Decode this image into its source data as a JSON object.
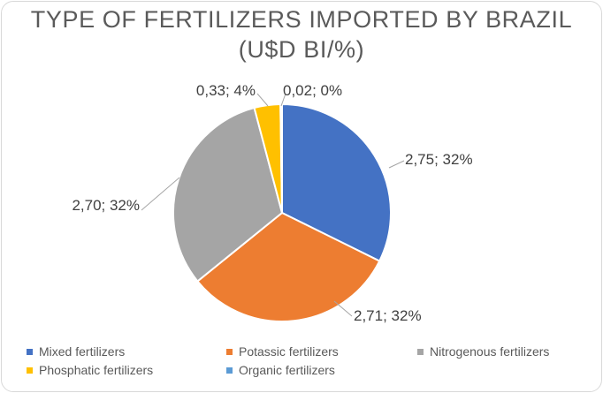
{
  "chart_data": {
    "type": "pie",
    "title_line1": "TYPE OF FERTILIZERS IMPORTED BY BRAZIL",
    "title_line2": "(U$D BI/%)",
    "slices": [
      {
        "name": "Mixed fertilizers",
        "value": 2.75,
        "label": "2,75; 32%",
        "color": "#4472C4"
      },
      {
        "name": "Potassic fertilizers",
        "value": 2.71,
        "label": "2,71; 32%",
        "color": "#ED7D31"
      },
      {
        "name": "Nitrogenous fertilizers",
        "value": 2.7,
        "label": "2,70; 32%",
        "color": "#A5A5A5"
      },
      {
        "name": "Phosphatic fertilizers",
        "value": 0.33,
        "label": "0,33; 4%",
        "color": "#FFC000"
      },
      {
        "name": "Organic fertilizers",
        "value": 0.02,
        "label": "0,02; 0%",
        "color": "#5B9BD5"
      }
    ],
    "legend_position": "bottom"
  }
}
